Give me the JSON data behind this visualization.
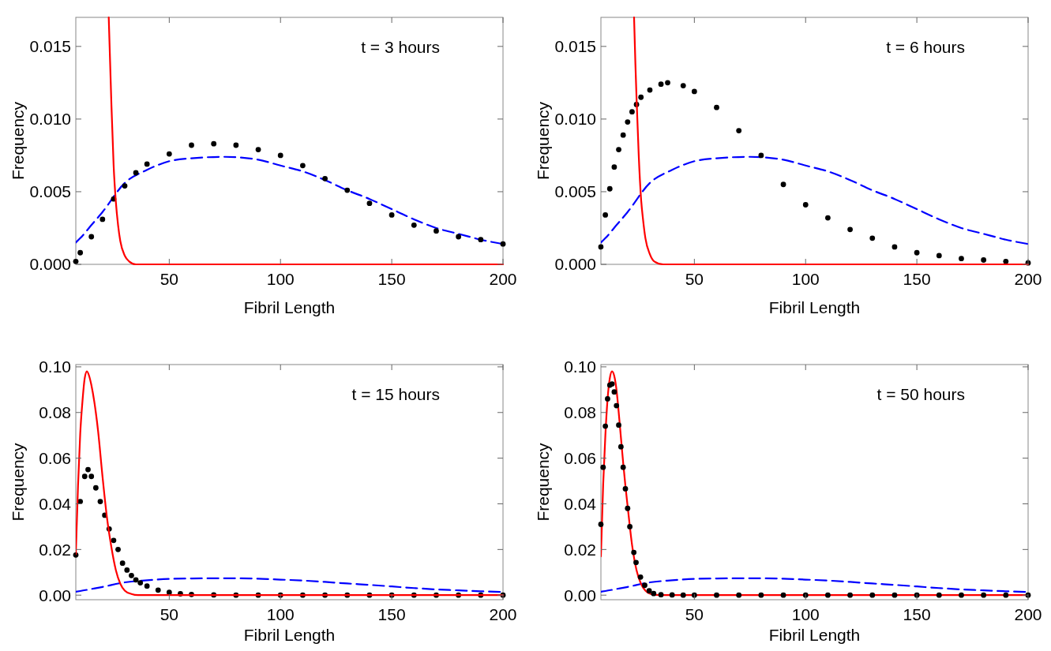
{
  "chart_data": [
    {
      "type": "line",
      "xlabel": "Fibril Length",
      "ylabel": "Frequency",
      "annotations": [
        "t = 3 hours"
      ],
      "xlim": [
        8,
        200
      ],
      "ylim": [
        0,
        0.017
      ],
      "xticks": [
        50,
        100,
        150,
        200
      ],
      "yticks": [
        {
          "value": 0,
          "label": "0.000"
        },
        {
          "value": 0.005,
          "label": "0.005"
        },
        {
          "value": 0.01,
          "label": "0.010"
        },
        {
          "value": 0.015,
          "label": "0.015"
        }
      ],
      "grid": false,
      "series": [
        {
          "type": "line",
          "color": "#0000ff",
          "line_style": "dashed",
          "x": [
            8,
            10,
            15,
            20,
            30,
            40,
            50,
            60,
            75,
            90,
            100,
            110,
            120,
            130,
            140,
            150,
            160,
            170,
            180,
            190,
            200
          ],
          "values": [
            0.0015,
            0.0018,
            0.0027,
            0.0036,
            0.0056,
            0.0065,
            0.0071,
            0.0073,
            0.0074,
            0.0072,
            0.0068,
            0.0064,
            0.0058,
            0.0051,
            0.0045,
            0.0038,
            0.0031,
            0.0025,
            0.0021,
            0.0017,
            0.0014
          ]
        },
        {
          "type": "scatter",
          "color": "#000000",
          "marker": "circle",
          "x": [
            8,
            10,
            15,
            20,
            25,
            30,
            35,
            40,
            50,
            60,
            70,
            80,
            90,
            100,
            110,
            120,
            130,
            140,
            150,
            160,
            170,
            180,
            190,
            200
          ],
          "values": [
            0.0002,
            0.0008,
            0.0019,
            0.0031,
            0.0045,
            0.0054,
            0.0063,
            0.0069,
            0.0076,
            0.0082,
            0.0083,
            0.0082,
            0.0079,
            0.0075,
            0.0068,
            0.0059,
            0.0051,
            0.0042,
            0.0034,
            0.0027,
            0.0023,
            0.0019,
            0.0017,
            0.0014
          ]
        },
        {
          "type": "line",
          "color": "#ff0000",
          "line_style": "solid",
          "x": [
            22.8,
            23.5,
            24,
            25,
            26,
            27,
            28,
            30,
            32,
            35,
            200
          ],
          "values": [
            0.017,
            0.0135,
            0.011,
            0.0068,
            0.0043,
            0.0027,
            0.0016,
            0.0006,
            0.0002,
            0,
            0
          ]
        }
      ]
    },
    {
      "type": "line",
      "xlabel": "Fibril Length",
      "ylabel": "Frequency",
      "annotations": [
        "t = 6 hours"
      ],
      "xlim": [
        8,
        200
      ],
      "ylim": [
        0,
        0.017
      ],
      "xticks": [
        50,
        100,
        150,
        200
      ],
      "yticks": [
        {
          "value": 0,
          "label": "0.000"
        },
        {
          "value": 0.005,
          "label": "0.005"
        },
        {
          "value": 0.01,
          "label": "0.010"
        },
        {
          "value": 0.015,
          "label": "0.015"
        }
      ],
      "grid": false,
      "series": [
        {
          "type": "line",
          "color": "#0000ff",
          "line_style": "dashed",
          "x": [
            8,
            10,
            15,
            20,
            30,
            40,
            50,
            60,
            75,
            90,
            100,
            110,
            120,
            130,
            140,
            150,
            160,
            170,
            180,
            190,
            200
          ],
          "values": [
            0.0015,
            0.0018,
            0.0027,
            0.0036,
            0.0056,
            0.0065,
            0.0071,
            0.0073,
            0.0074,
            0.0072,
            0.0068,
            0.0064,
            0.0058,
            0.0051,
            0.0045,
            0.0038,
            0.0031,
            0.0025,
            0.0021,
            0.0017,
            0.0014
          ]
        },
        {
          "type": "scatter",
          "color": "#000000",
          "marker": "circle",
          "x": [
            8,
            10,
            12,
            14,
            16,
            18,
            20,
            22,
            24,
            26,
            30,
            35,
            38,
            45,
            50,
            60,
            70,
            80,
            90,
            100,
            110,
            120,
            130,
            140,
            150,
            160,
            170,
            180,
            190,
            200
          ],
          "values": [
            0.0012,
            0.0034,
            0.0052,
            0.0067,
            0.0079,
            0.0089,
            0.0098,
            0.0105,
            0.011,
            0.0115,
            0.012,
            0.0124,
            0.0125,
            0.0123,
            0.0119,
            0.0108,
            0.0092,
            0.0075,
            0.0055,
            0.0041,
            0.0032,
            0.0024,
            0.0018,
            0.0012,
            0.0008,
            0.0006,
            0.0004,
            0.0003,
            0.0002,
            0.0001
          ]
        },
        {
          "type": "line",
          "color": "#ff0000",
          "line_style": "solid",
          "x": [
            22.9,
            23.5,
            24,
            25,
            26,
            27,
            28,
            30,
            32,
            36,
            200
          ],
          "values": [
            0.017,
            0.0138,
            0.0115,
            0.0075,
            0.0046,
            0.003,
            0.0018,
            0.0007,
            0.0002,
            0,
            0
          ]
        }
      ]
    },
    {
      "type": "line",
      "xlabel": "Fibril Length",
      "ylabel": "Frequency",
      "annotations": [
        "t = 15 hours"
      ],
      "xlim": [
        8,
        200
      ],
      "ylim": [
        -0.002,
        0.101
      ],
      "xticks": [
        50,
        100,
        150,
        200
      ],
      "yticks": [
        {
          "value": 0,
          "label": "0.00"
        },
        {
          "value": 0.02,
          "label": "0.02"
        },
        {
          "value": 0.04,
          "label": "0.04"
        },
        {
          "value": 0.06,
          "label": "0.06"
        },
        {
          "value": 0.08,
          "label": "0.08"
        },
        {
          "value": 0.1,
          "label": "0.10"
        }
      ],
      "grid": false,
      "series": [
        {
          "type": "line",
          "color": "#0000ff",
          "line_style": "dashed",
          "x": [
            8,
            10,
            15,
            20,
            30,
            40,
            50,
            60,
            75,
            90,
            100,
            110,
            120,
            130,
            140,
            150,
            160,
            170,
            180,
            190,
            200
          ],
          "values": [
            0.0015,
            0.0018,
            0.0027,
            0.0036,
            0.0056,
            0.0065,
            0.0071,
            0.0073,
            0.0074,
            0.0072,
            0.0068,
            0.0064,
            0.0058,
            0.0051,
            0.0045,
            0.0038,
            0.0031,
            0.0025,
            0.0021,
            0.0017,
            0.0014
          ]
        },
        {
          "type": "scatter",
          "color": "#000000",
          "marker": "circle",
          "x": [
            8,
            10,
            12,
            13.5,
            15,
            17,
            19,
            21,
            23,
            25,
            27,
            29,
            31,
            33,
            35,
            37,
            40,
            45,
            50,
            55,
            60,
            70,
            80,
            90,
            100,
            110,
            120,
            130,
            140,
            150,
            160,
            170,
            180,
            190,
            200
          ],
          "values": [
            0.0176,
            0.041,
            0.052,
            0.055,
            0.052,
            0.047,
            0.041,
            0.035,
            0.029,
            0.024,
            0.02,
            0.014,
            0.011,
            0.0086,
            0.0067,
            0.0054,
            0.004,
            0.0022,
            0.0012,
            0.0006,
            0.0003,
            0.0001,
            0,
            0,
            0,
            0,
            0,
            0,
            0,
            0,
            0,
            0,
            0,
            0,
            0
          ]
        },
        {
          "type": "line",
          "color": "#ff0000",
          "line_style": "solid",
          "x": [
            8,
            9,
            10,
            11,
            12,
            13,
            14,
            15,
            17,
            18,
            20,
            22,
            24,
            26,
            28,
            30,
            33,
            36,
            200
          ],
          "values": [
            0.018,
            0.048,
            0.071,
            0.085,
            0.095,
            0.098,
            0.096,
            0.092,
            0.08,
            0.072,
            0.052,
            0.034,
            0.021,
            0.011,
            0.005,
            0.002,
            0.0005,
            0,
            0
          ]
        }
      ]
    },
    {
      "type": "line",
      "xlabel": "Fibril Length",
      "ylabel": "Frequency",
      "annotations": [
        "t = 50 hours"
      ],
      "xlim": [
        8,
        200
      ],
      "ylim": [
        -0.002,
        0.101
      ],
      "xticks": [
        50,
        100,
        150,
        200
      ],
      "yticks": [
        {
          "value": 0,
          "label": "0.00"
        },
        {
          "value": 0.02,
          "label": "0.02"
        },
        {
          "value": 0.04,
          "label": "0.04"
        },
        {
          "value": 0.06,
          "label": "0.06"
        },
        {
          "value": 0.08,
          "label": "0.08"
        },
        {
          "value": 0.1,
          "label": "0.10"
        }
      ],
      "grid": false,
      "series": [
        {
          "type": "line",
          "color": "#0000ff",
          "line_style": "dashed",
          "x": [
            8,
            10,
            15,
            20,
            30,
            40,
            50,
            60,
            75,
            90,
            100,
            110,
            120,
            130,
            140,
            150,
            160,
            170,
            180,
            190,
            200
          ],
          "values": [
            0.0015,
            0.0018,
            0.0027,
            0.0036,
            0.0056,
            0.0065,
            0.0071,
            0.0073,
            0.0074,
            0.0072,
            0.0068,
            0.0064,
            0.0058,
            0.0051,
            0.0045,
            0.0038,
            0.0031,
            0.0025,
            0.0021,
            0.0017,
            0.0014
          ]
        },
        {
          "type": "line",
          "color": "#ff0000",
          "line_style": "solid",
          "x": [
            8,
            9,
            10,
            11,
            12,
            13,
            14,
            15,
            16,
            17,
            18,
            19,
            20,
            22,
            24,
            26,
            28,
            30,
            33,
            36,
            200
          ],
          "values": [
            0.017,
            0.048,
            0.07,
            0.086,
            0.095,
            0.098,
            0.096,
            0.09,
            0.08,
            0.069,
            0.058,
            0.048,
            0.039,
            0.022,
            0.011,
            0.005,
            0.002,
            0.0007,
            0.0001,
            0,
            0
          ]
        },
        {
          "type": "scatter",
          "color": "#000000",
          "marker": "circle",
          "x": [
            8,
            9,
            10,
            11,
            12,
            13,
            14,
            15,
            16,
            17,
            18,
            19,
            20,
            21,
            22.8,
            23.8,
            25.8,
            27.7,
            29.7,
            31.7,
            35,
            40,
            45,
            50,
            60,
            70,
            80,
            90,
            100,
            110,
            120,
            130,
            140,
            150,
            160,
            170,
            180,
            190,
            200
          ],
          "values": [
            0.031,
            0.056,
            0.074,
            0.086,
            0.092,
            0.0925,
            0.089,
            0.083,
            0.0745,
            0.065,
            0.056,
            0.0466,
            0.038,
            0.03,
            0.0187,
            0.0143,
            0.0079,
            0.0043,
            0.0019,
            0.0007,
            0.0002,
            0.0001,
            0,
            0,
            0,
            0,
            0,
            0,
            0,
            0,
            0,
            0,
            0,
            0,
            0,
            0,
            0,
            0,
            0
          ]
        }
      ]
    }
  ]
}
